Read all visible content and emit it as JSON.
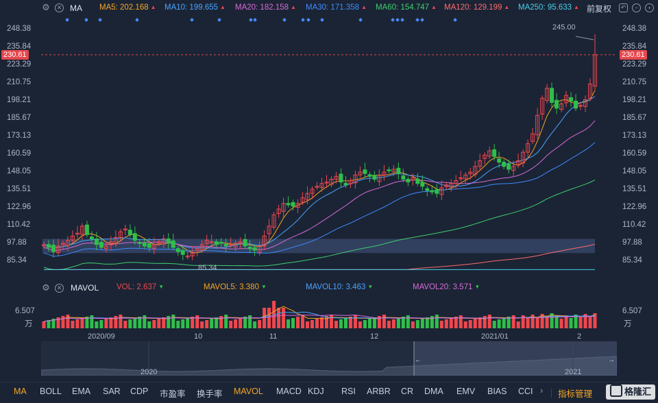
{
  "toolbar": {
    "indicator": "MA",
    "ma": [
      {
        "label": "MA5: 202.168",
        "color": "#f5a623"
      },
      {
        "label": "MA10: 199.655",
        "color": "#4aa3ff"
      },
      {
        "label": "MA20: 182.158",
        "color": "#d66bd6"
      },
      {
        "label": "MA30: 171.358",
        "color": "#3d8bff"
      },
      {
        "label": "MA60: 154.747",
        "color": "#3ecf6e"
      },
      {
        "label": "MA120: 129.199",
        "color": "#ff6b6b"
      },
      {
        "label": "MA250: 95.633",
        "color": "#45d0e8"
      }
    ],
    "adjust": "前复权"
  },
  "price_axis": {
    "ticks": [
      "248.38",
      "235.84",
      "223.29",
      "210.75",
      "198.21",
      "185.67",
      "173.13",
      "160.59",
      "148.05",
      "135.51",
      "122.96",
      "110.42",
      "97.88",
      "85.34"
    ],
    "current": "230.61",
    "high_label": "245.00",
    "low_label": "85.34"
  },
  "volume_panel": {
    "name": "MAVOL",
    "vol": "VOL: 2.637",
    "mavol5": "MAVOL5: 3.380",
    "mavol10": "MAVOL10: 3.463",
    "mavol20": "MAVOL20: 3.571",
    "axis_top": "6.507",
    "axis_unit": "万"
  },
  "time_axis": [
    "2020/09",
    "10",
    "11",
    "12",
    "2021/01",
    "2"
  ],
  "navigator": {
    "left_year": "2020",
    "right_year": "2021"
  },
  "tabs": [
    "MA",
    "BOLL",
    "EMA",
    "SAR",
    "CDP",
    "市盈率",
    "换手率",
    "MAVOL",
    "MACD",
    "KDJ",
    "RSI",
    "ARBR",
    "CR",
    "DMA",
    "EMV",
    "BIAS",
    "CCI"
  ],
  "active_tabs": [
    "MA",
    "MAVOL"
  ],
  "tabs_more": "›",
  "indicator_manage": "指标管理",
  "watermark": "格隆汇",
  "colors": {
    "up": "#f0474d",
    "down": "#2fbf4a",
    "accent": "#f5a623"
  },
  "chart_data": {
    "type": "candlestick",
    "price_range": [
      85.34,
      248.38
    ],
    "months": [
      "2020/09",
      "10",
      "11",
      "12",
      "2021/01",
      "2"
    ],
    "closes": [
      97,
      95,
      92,
      96,
      98,
      100,
      103,
      105,
      110,
      104,
      101,
      97,
      95,
      96,
      99,
      102,
      106,
      108,
      104,
      100,
      98,
      96,
      95,
      97,
      99,
      101,
      98,
      95,
      92,
      90,
      89,
      91,
      94,
      97,
      100,
      99,
      97,
      98,
      96,
      97,
      98,
      99,
      96,
      94,
      93,
      96,
      103,
      110,
      118,
      122,
      126,
      125,
      124,
      126,
      130,
      133,
      136,
      138,
      140,
      141,
      143,
      145,
      141,
      139,
      142,
      146,
      148,
      147,
      145,
      143,
      146,
      148,
      149,
      150,
      147,
      143,
      141,
      144,
      140,
      138,
      135,
      134,
      133,
      137,
      139,
      140,
      142,
      144,
      146,
      148,
      152,
      156,
      160,
      163,
      159,
      155,
      152,
      150,
      152,
      156,
      162,
      168,
      175,
      188,
      200,
      207,
      197,
      193,
      196,
      202,
      198,
      193,
      195,
      199,
      210,
      230.61
    ],
    "high": 245.0,
    "low": 85.34,
    "volume_unit": "万",
    "volume_max": 6.507
  }
}
